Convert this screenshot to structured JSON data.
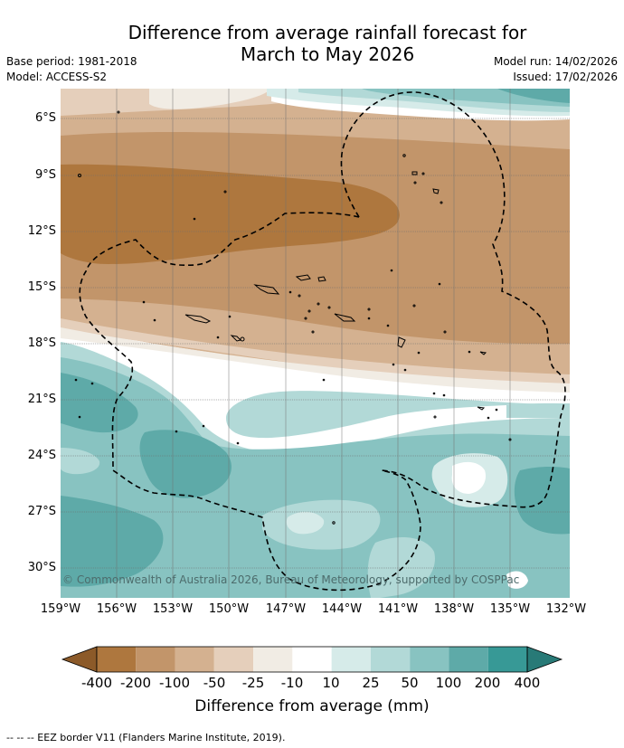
{
  "title_line1": "Difference from average rainfall forecast for",
  "title_line2": "March to May 2026",
  "base_period": "Base period: 1981-2018",
  "model": "Model: ACCESS-S2",
  "model_run": "Model run: 14/02/2026",
  "issued": "Issued: 17/02/2026",
  "copyright": "© Commonwealth of Australia 2026, Bureau of Meteorology, supported by COSPPac",
  "lat_labels": [
    "6°S",
    "9°S",
    "12°S",
    "15°S",
    "18°S",
    "21°S",
    "24°S",
    "27°S",
    "30°S"
  ],
  "lon_labels": [
    "159°W",
    "156°W",
    "153°W",
    "150°W",
    "147°W",
    "144°W",
    "141°W",
    "138°W",
    "135°W",
    "132°W"
  ],
  "colorbar": {
    "ticks": [
      "-400",
      "-200",
      "-100",
      "-50",
      "-25",
      "-10",
      "10",
      "25",
      "50",
      "100",
      "200",
      "400"
    ],
    "colors": [
      "#8c5a29",
      "#ae773e",
      "#c2956a",
      "#d4b190",
      "#e5cfbb",
      "#f1ece4",
      "#ffffff",
      "#d6ebe9",
      "#b2d9d7",
      "#88c3c1",
      "#5eaaa8",
      "#379996",
      "#287a77"
    ],
    "title": "Difference from average (mm)"
  },
  "footer": "--  --  -- EEZ border V11 (Flanders Marine Institute, 2019)."
}
